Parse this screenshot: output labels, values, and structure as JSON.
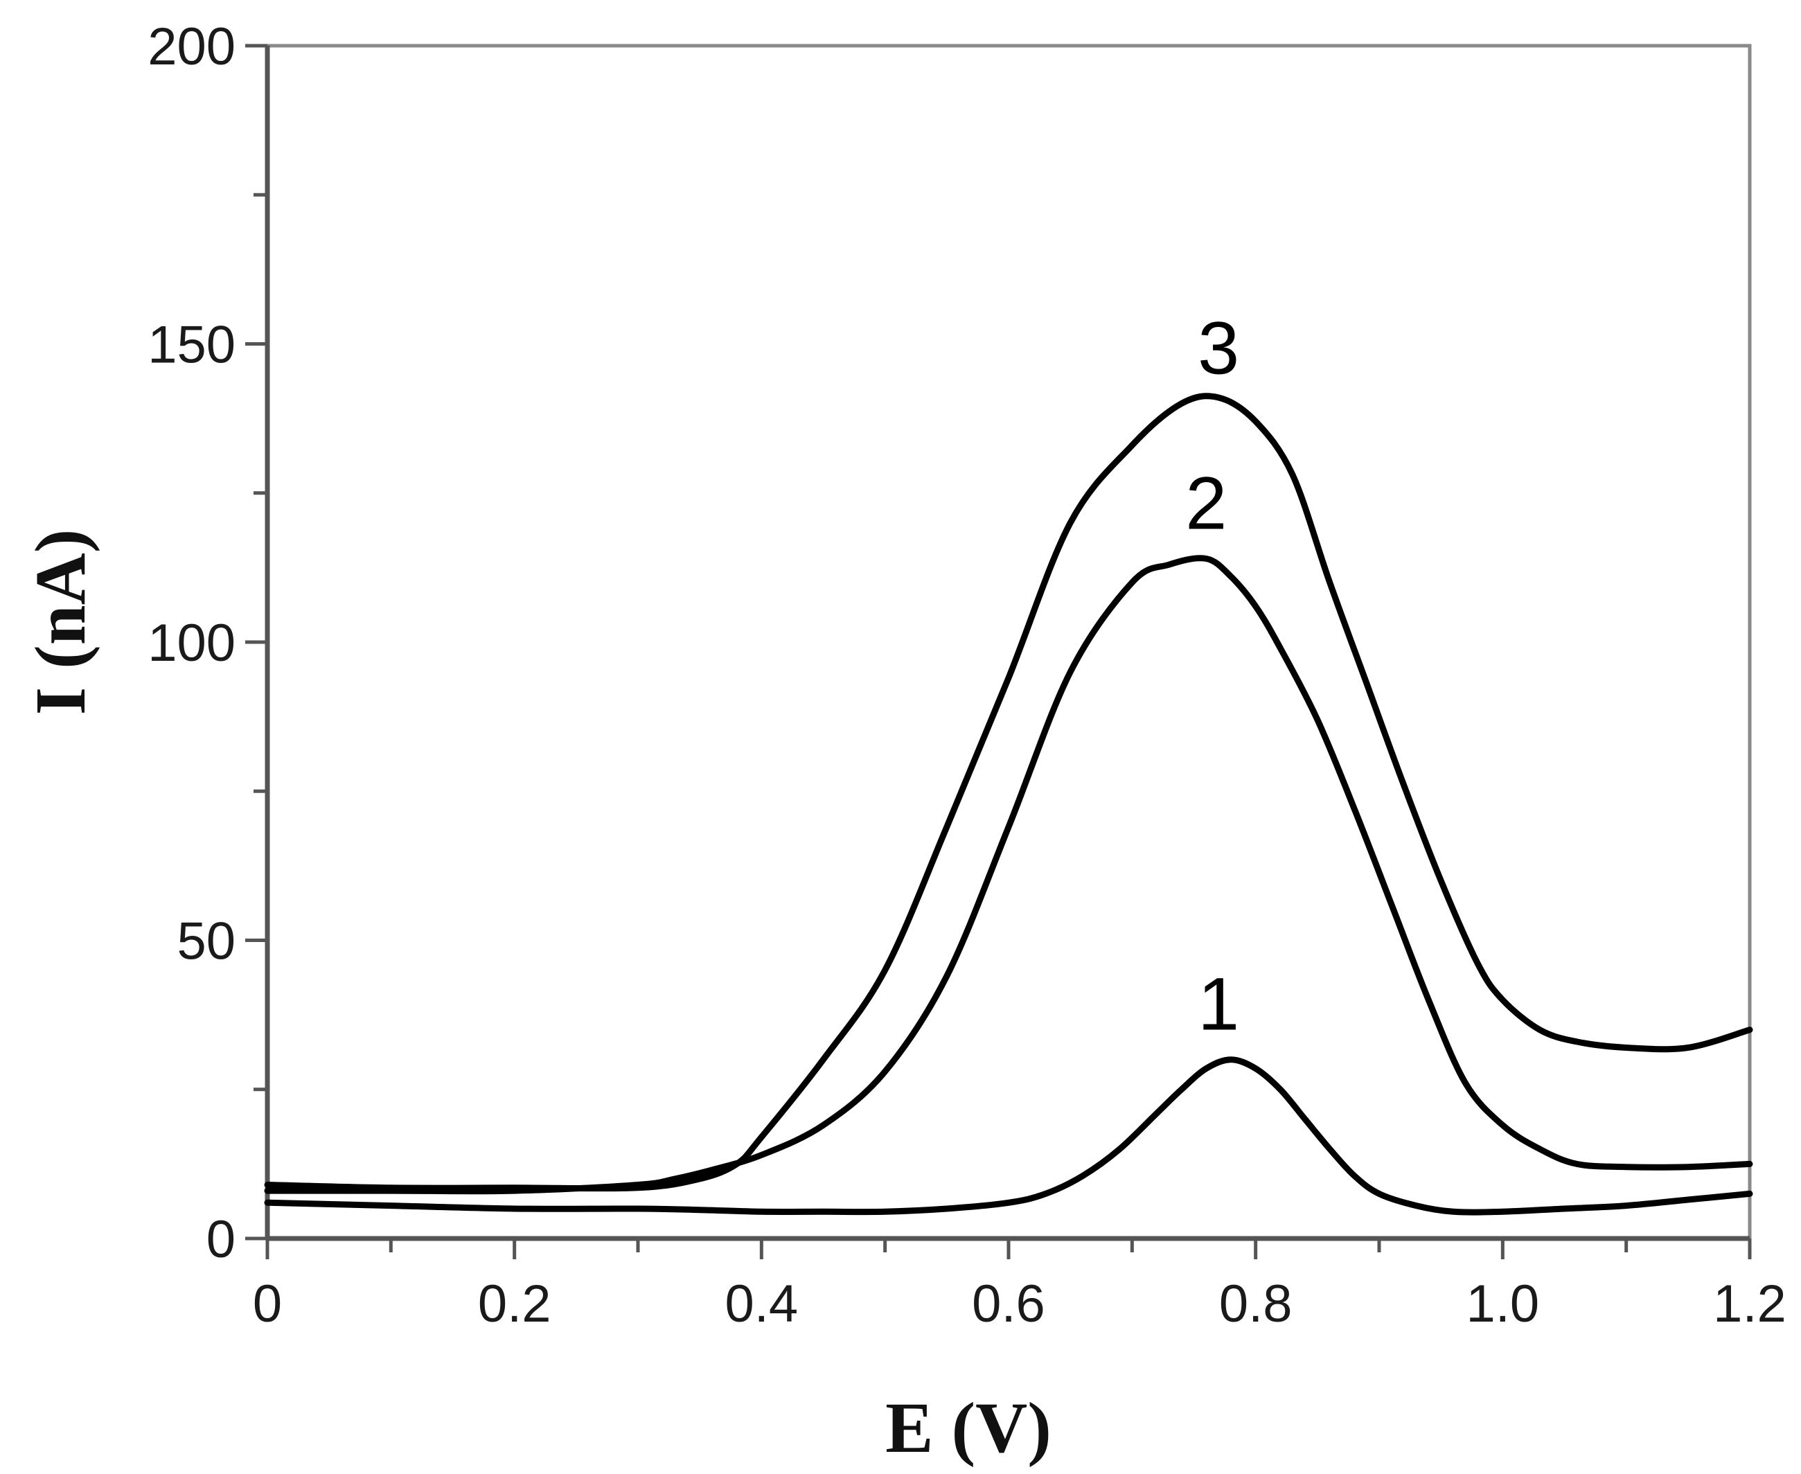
{
  "chart_data": {
    "type": "line",
    "title": "",
    "xlabel": "E (V)",
    "ylabel": "I (nA)",
    "xlim": [
      0,
      1.2
    ],
    "ylim": [
      0,
      200
    ],
    "x_ticks": [
      0,
      0.2,
      0.4,
      0.6,
      0.8,
      1.0,
      1.2
    ],
    "x_tick_labels": [
      "0",
      "0.2",
      "0.4",
      "0.6",
      "0.8",
      "1.0",
      "1.2"
    ],
    "y_ticks": [
      0,
      50,
      100,
      150,
      200
    ],
    "y_tick_labels": [
      "0",
      "50",
      "100",
      "150",
      "200"
    ],
    "grid": false,
    "legend": "none",
    "series": [
      {
        "name": "1",
        "label_at": [
          0.77,
          35
        ],
        "x": [
          0,
          0.1,
          0.2,
          0.3,
          0.35,
          0.4,
          0.45,
          0.5,
          0.55,
          0.6,
          0.63,
          0.66,
          0.69,
          0.72,
          0.74,
          0.76,
          0.78,
          0.8,
          0.82,
          0.84,
          0.86,
          0.88,
          0.9,
          0.93,
          0.96,
          1.0,
          1.05,
          1.1,
          1.15,
          1.2
        ],
        "values": [
          6,
          5.5,
          5,
          5,
          4.8,
          4.5,
          4.5,
          4.5,
          5,
          6,
          7.5,
          10.5,
          15,
          21,
          25,
          28.5,
          30,
          28.5,
          25,
          20,
          15,
          10.5,
          7.5,
          5.5,
          4.5,
          4.5,
          5,
          5.5,
          6.5,
          7.5
        ]
      },
      {
        "name": "2",
        "label_at": [
          0.76,
          119
        ],
        "x": [
          0,
          0.1,
          0.2,
          0.3,
          0.33,
          0.36,
          0.4,
          0.45,
          0.5,
          0.55,
          0.6,
          0.65,
          0.7,
          0.73,
          0.76,
          0.78,
          0.8,
          0.82,
          0.85,
          0.88,
          0.91,
          0.94,
          0.97,
          1.0,
          1.03,
          1.06,
          1.1,
          1.15,
          1.2
        ],
        "values": [
          8,
          8,
          8,
          9,
          10,
          11.5,
          14,
          19,
          28,
          44,
          69,
          95,
          110,
          113,
          114,
          111,
          106,
          99,
          87,
          72,
          56,
          40,
          26,
          19,
          15,
          12.5,
          12,
          12,
          12.5
        ]
      },
      {
        "name": "3",
        "label_at": [
          0.77,
          145
        ],
        "x": [
          0,
          0.1,
          0.2,
          0.3,
          0.35,
          0.38,
          0.4,
          0.45,
          0.5,
          0.55,
          0.6,
          0.65,
          0.7,
          0.74,
          0.77,
          0.8,
          0.83,
          0.86,
          0.89,
          0.92,
          0.95,
          0.98,
          1.0,
          1.03,
          1.06,
          1.1,
          1.15,
          1.2
        ],
        "values": [
          9,
          8.5,
          8.5,
          8.5,
          10,
          12.5,
          17,
          30,
          45,
          69,
          94,
          120,
          133,
          140,
          141,
          137,
          128,
          110,
          93,
          76,
          60,
          46,
          40,
          35,
          33,
          32,
          32,
          35
        ]
      }
    ]
  }
}
